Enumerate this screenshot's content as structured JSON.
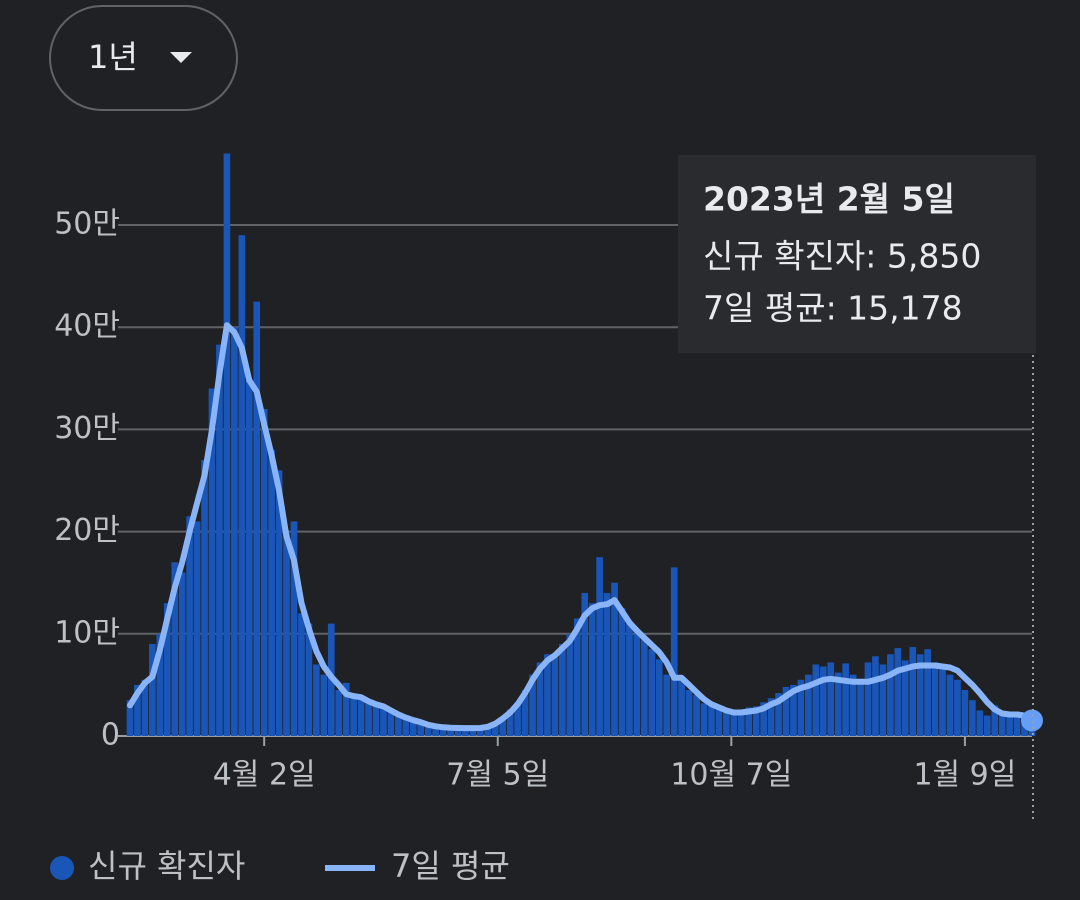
{
  "range_selector": "1년",
  "chart_data": {
    "type": "combo",
    "x": [
      0,
      3,
      6,
      9,
      12,
      15,
      18,
      21,
      24,
      27,
      30,
      33,
      36,
      39,
      42,
      45,
      48,
      51,
      54,
      57,
      60,
      63,
      66,
      69,
      72,
      75,
      78,
      81,
      84,
      87,
      90,
      93,
      96,
      99,
      102,
      105,
      108,
      111,
      114,
      117,
      120,
      123,
      126,
      129,
      132,
      135,
      138,
      141,
      144,
      147,
      150,
      153,
      156,
      159,
      162,
      165,
      168,
      171,
      174,
      177,
      180,
      183,
      186,
      189,
      192,
      195,
      198,
      201,
      204,
      207,
      210,
      213,
      216,
      219,
      222,
      225,
      228,
      231,
      234,
      237,
      240,
      243,
      246,
      249,
      252,
      255,
      258,
      261,
      264,
      267,
      270,
      273,
      276,
      279,
      282,
      285,
      288,
      291,
      294,
      297,
      300,
      303,
      306,
      309,
      312,
      315,
      318,
      321,
      324,
      327,
      330,
      333,
      336,
      339,
      342,
      345,
      348,
      351,
      354,
      357,
      360,
      363
    ],
    "xlim": [
      0,
      363
    ],
    "xticks": [
      {
        "value": 54,
        "label": "4월 2일"
      },
      {
        "value": 148,
        "label": "7월 5일"
      },
      {
        "value": 242,
        "label": "10월 7일"
      },
      {
        "value": 336,
        "label": "1월 9일"
      }
    ],
    "ylim": [
      0,
      570000
    ],
    "yticks": [
      0,
      {
        "value": 100000,
        "label": "10만"
      },
      {
        "value": 200000,
        "label": "20만"
      },
      {
        "value": 300000,
        "label": "30만"
      },
      {
        "value": 400000,
        "label": "40만"
      },
      {
        "value": 500000,
        "label": "50만"
      }
    ],
    "grid": true,
    "series": [
      {
        "name": "신규 확진자",
        "type": "bar",
        "color": "#1a56b8",
        "values": [
          35000,
          50000,
          55000,
          90000,
          100000,
          130000,
          170000,
          160000,
          215000,
          210000,
          270000,
          340000,
          383000,
          570000,
          400000,
          490000,
          350000,
          425000,
          320000,
          280000,
          260000,
          200000,
          210000,
          120000,
          110000,
          70000,
          60000,
          110000,
          45000,
          52000,
          40000,
          36000,
          33000,
          30000,
          28000,
          25000,
          20000,
          17000,
          15000,
          13000,
          11000,
          10000,
          9000,
          8500,
          8000,
          8000,
          7500,
          8000,
          10000,
          13000,
          18000,
          26000,
          33000,
          45000,
          60000,
          72000,
          80000,
          78000,
          90000,
          100000,
          115000,
          140000,
          130000,
          175000,
          140000,
          150000,
          125000,
          110000,
          100000,
          95000,
          85000,
          75000,
          60000,
          165000,
          55000,
          45000,
          40000,
          32000,
          30000,
          27000,
          25000,
          22000,
          26000,
          28000,
          29000,
          33000,
          37000,
          42000,
          48000,
          50000,
          55000,
          60000,
          70000,
          68000,
          72000,
          62000,
          71000,
          60000,
          55000,
          72000,
          78000,
          70000,
          80000,
          86000,
          74000,
          87000,
          80000,
          85000,
          72000,
          68000,
          60000,
          55000,
          45000,
          35000,
          25000,
          20000,
          30000,
          22000,
          20000,
          24000,
          18000,
          5850
        ]
      },
      {
        "name": "7일 평균",
        "type": "line",
        "color": "#8ab4f8",
        "values": [
          30000,
          42000,
          52000,
          58000,
          84000,
          115000,
          145000,
          170000,
          200000,
          228000,
          255000,
          300000,
          355000,
          402000,
          395000,
          380000,
          348000,
          337000,
          305000,
          275000,
          240000,
          195000,
          172000,
          130000,
          105000,
          83000,
          68000,
          58000,
          50000,
          41000,
          39000,
          38000,
          34000,
          31000,
          29000,
          25000,
          21000,
          18000,
          15500,
          13500,
          11000,
          9500,
          8500,
          8000,
          7800,
          7700,
          7700,
          7800,
          9000,
          12000,
          17000,
          23000,
          31000,
          42000,
          55000,
          66000,
          74000,
          79000,
          86000,
          93000,
          105000,
          118000,
          125000,
          128000,
          129000,
          133000,
          122000,
          111000,
          103000,
          96000,
          89000,
          82000,
          72000,
          57000,
          57000,
          50000,
          43000,
          36000,
          31000,
          28000,
          25000,
          23000,
          23000,
          24000,
          25000,
          27000,
          31000,
          34000,
          39000,
          44000,
          47000,
          49000,
          52000,
          55000,
          56000,
          55000,
          54000,
          53000,
          53000,
          53000,
          55000,
          57000,
          60000,
          64000,
          66000,
          68000,
          69000,
          69000,
          69000,
          68000,
          67000,
          64000,
          57000,
          50000,
          42000,
          33000,
          26000,
          22000,
          21000,
          21000,
          20000,
          15178
        ]
      }
    ],
    "tooltip": {
      "title": "2023년 2월 5일",
      "lines": [
        "신규 확진자: 5,850",
        "7일 평균: 15,178"
      ]
    }
  }
}
